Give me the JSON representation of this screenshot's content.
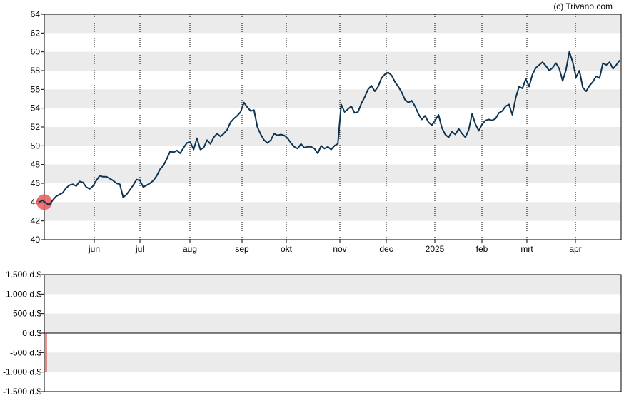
{
  "copyright": "(c) Trivano.com",
  "colors": {
    "band": "#ebebeb",
    "price_line": "#0d3350",
    "marker_fill": "#e85a5a",
    "volume_bar": "#e02020",
    "axis": "#000000",
    "grid_dotted": "#000000"
  },
  "chart_data": [
    {
      "type": "line",
      "title": "",
      "xlabel": "",
      "ylabel": "",
      "ylim": [
        40,
        64
      ],
      "yticks": [
        40,
        42,
        44,
        46,
        48,
        50,
        52,
        54,
        56,
        58,
        60,
        62,
        64
      ],
      "xticks": [
        "jun",
        "jul",
        "aug",
        "sep",
        "okt",
        "nov",
        "dec",
        "2025",
        "feb",
        "mrt",
        "apr"
      ],
      "grid": "alternating horizontal bands, dotted vertical lines at month ticks",
      "series": [
        {
          "values": [
            44.0,
            44.2,
            43.9,
            43.7,
            44.2,
            44.6,
            44.8,
            45.0,
            45.5,
            45.8,
            45.9,
            45.7,
            46.2,
            46.1,
            45.6,
            45.4,
            45.7,
            46.3,
            46.8,
            46.7,
            46.7,
            46.5,
            46.3,
            46.0,
            45.9,
            44.5,
            44.8,
            45.3,
            45.8,
            46.4,
            46.3,
            45.6,
            45.8,
            46.0,
            46.3,
            46.8,
            47.5,
            47.9,
            48.6,
            49.4,
            49.3,
            49.5,
            49.2,
            49.8,
            50.3,
            50.4,
            49.6,
            50.8,
            49.6,
            49.8,
            50.6,
            50.2,
            50.9,
            51.3,
            51.0,
            51.3,
            51.7,
            52.5,
            52.9,
            53.2,
            53.6,
            54.6,
            54.1,
            53.7,
            53.8,
            52.0,
            51.2,
            50.6,
            50.3,
            50.6,
            51.3,
            51.1,
            51.2,
            51.1,
            50.8,
            50.3,
            49.9,
            49.7,
            50.2,
            49.8,
            49.9,
            49.9,
            49.7,
            49.2,
            50.0,
            49.7,
            49.9,
            49.6,
            50.0,
            50.2,
            54.4,
            53.6,
            53.9,
            54.2,
            53.5,
            53.6,
            54.5,
            55.2,
            56.0,
            56.4,
            55.8,
            56.3,
            57.2,
            57.6,
            57.8,
            57.5,
            56.8,
            56.3,
            55.7,
            54.9,
            54.6,
            54.8,
            54.2,
            53.4,
            52.8,
            53.2,
            52.5,
            52.2,
            52.7,
            53.3,
            51.9,
            51.2,
            50.9,
            51.5,
            51.2,
            51.8,
            51.3,
            50.9,
            51.7,
            53.4,
            52.3,
            51.6,
            52.3,
            52.7,
            52.8,
            52.7,
            52.9,
            53.5,
            53.7,
            54.2,
            54.4,
            53.3,
            55.1,
            56.3,
            56.1,
            57.1,
            56.3,
            57.6,
            58.3,
            58.6,
            58.9,
            58.5,
            58.0,
            58.3,
            58.8,
            58.2,
            56.9,
            58.1,
            60.0,
            58.9,
            57.3,
            58.0,
            56.2,
            55.8,
            56.4,
            56.8,
            57.4,
            57.2,
            58.8,
            58.6,
            58.9,
            58.2,
            58.6,
            59.1
          ]
        }
      ],
      "start_marker": {
        "value": 44.0
      }
    },
    {
      "type": "bar",
      "title": "",
      "xlabel": "",
      "ylabel": "",
      "ylim": [
        -1500,
        1500
      ],
      "yticks": [
        "-1.500 d.$",
        "-1.000 d.$",
        "-500 d.$",
        "0 d.$",
        "500 d.$",
        "1.000 d.$",
        "1.500 d.$"
      ],
      "ytick_values": [
        -1500,
        -1000,
        -500,
        0,
        500,
        1000,
        1500
      ],
      "series": [
        {
          "values": [
            -1000
          ]
        }
      ]
    }
  ]
}
